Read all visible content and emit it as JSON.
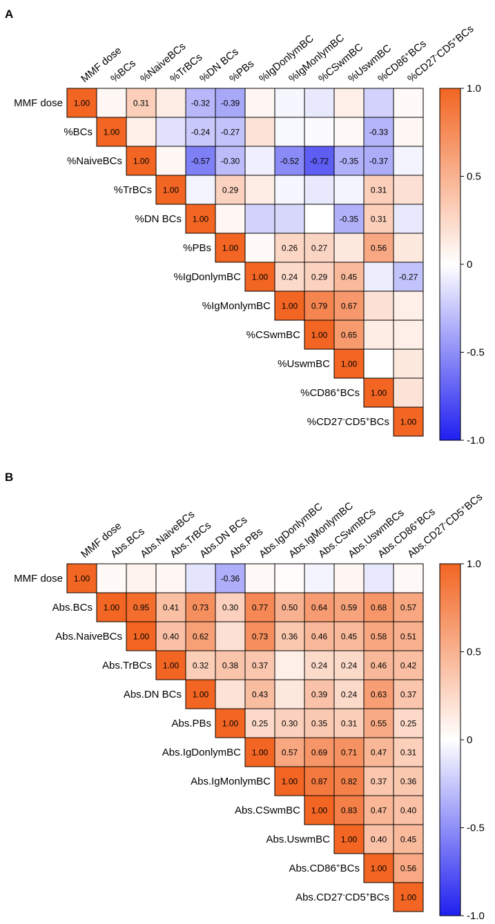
{
  "colors": {
    "positive": "#f26522",
    "zero": "#ffffff",
    "negative": "#1f1ff0",
    "grid": "#000000"
  },
  "chart_data": [
    {
      "type": "heatmap",
      "panel_label": "A",
      "title": "",
      "variables": [
        {
          "text": "MMF dose"
        },
        {
          "text": "%BCs"
        },
        {
          "text": "%NaiveBCs"
        },
        {
          "text": "%TrBCs"
        },
        {
          "text": "%DN BCs"
        },
        {
          "text": "%PBs"
        },
        {
          "text": "%IgDonlymBC"
        },
        {
          "text": "%IgMonlymBC"
        },
        {
          "text": "%CSwmBC"
        },
        {
          "text": "%UswmBC"
        },
        {
          "text": "%CD86",
          "sup": "+",
          "tail": "BCs"
        },
        {
          "text": "%CD27",
          "sup": "-",
          "mid": "CD5",
          "sup2": "+",
          "tail": "BCs"
        }
      ],
      "upper_triangle": [
        [
          1.0,
          0.05,
          0.31,
          0.12,
          -0.32,
          -0.39,
          0.06,
          -0.04,
          -0.1,
          0.1,
          -0.2,
          0.03
        ],
        [
          1.0,
          0.1,
          -0.13,
          -0.24,
          -0.27,
          0.18,
          -0.03,
          -0.02,
          0.04,
          -0.33,
          0.05
        ],
        [
          1.0,
          0.05,
          -0.57,
          -0.3,
          -0.07,
          -0.52,
          -0.72,
          -0.35,
          -0.37,
          -0.05
        ],
        [
          1.0,
          -0.05,
          0.29,
          0.12,
          -0.04,
          -0.1,
          -0.05,
          0.31,
          0.2
        ],
        [
          1.0,
          0.05,
          -0.2,
          -0.18,
          0.0,
          -0.35,
          0.31,
          -0.1
        ],
        [
          1.0,
          0.03,
          0.26,
          0.27,
          0.15,
          0.56,
          0.15
        ],
        [
          1.0,
          0.24,
          0.29,
          0.45,
          -0.08,
          -0.27
        ],
        [
          1.0,
          0.79,
          0.67,
          0.2,
          0.1
        ],
        [
          1.0,
          0.65,
          0.12,
          0.1
        ],
        [
          1.0,
          0.0,
          0.15
        ],
        [
          1.0,
          0.18
        ],
        [
          1.0
        ]
      ],
      "labeled_values": [
        [
          1.0,
          null,
          0.31,
          null,
          -0.32,
          -0.39,
          null,
          null,
          null,
          null,
          null,
          null
        ],
        [
          1.0,
          null,
          null,
          -0.24,
          -0.27,
          null,
          null,
          null,
          null,
          -0.33,
          null
        ],
        [
          1.0,
          null,
          -0.57,
          -0.3,
          null,
          -0.52,
          -0.72,
          -0.35,
          -0.37,
          null
        ],
        [
          1.0,
          null,
          0.29,
          null,
          null,
          null,
          null,
          0.31,
          null
        ],
        [
          1.0,
          null,
          null,
          null,
          null,
          -0.35,
          0.31,
          null
        ],
        [
          1.0,
          null,
          0.26,
          0.27,
          null,
          0.56,
          null
        ],
        [
          1.0,
          0.24,
          0.29,
          0.45,
          null,
          -0.27
        ],
        [
          1.0,
          0.79,
          0.67,
          null,
          null
        ],
        [
          1.0,
          0.65,
          null,
          null
        ],
        [
          1.0,
          null,
          null
        ],
        [
          1.0,
          null
        ],
        [
          1.0
        ]
      ],
      "colorbar": {
        "range": [
          -1.0,
          1.0
        ],
        "ticks": [
          "1.0",
          "0.5",
          "0",
          "-0.5",
          "-1.0"
        ],
        "tick_values": [
          1.0,
          0.5,
          0,
          -0.5,
          -1.0
        ]
      }
    },
    {
      "type": "heatmap",
      "panel_label": "B",
      "title": "",
      "variables": [
        {
          "text": "MMF dose"
        },
        {
          "text": "Abs.BCs"
        },
        {
          "text": "Abs.NaiveBCs"
        },
        {
          "text": "Abs.TrBCs"
        },
        {
          "text": "Abs.DN BCs"
        },
        {
          "text": "Abs.PBs"
        },
        {
          "text": "Abs.IgDonlymBC"
        },
        {
          "text": "Abs.IgMonlymBC"
        },
        {
          "text": "Abs.CSwmBCs"
        },
        {
          "text": "Abs.UswmBCs"
        },
        {
          "text": "Abs.CD86",
          "sup": "+",
          "tail": "BCs"
        },
        {
          "text": "Abs.CD27",
          "sup": "-",
          "mid": "CD5",
          "sup2": "+",
          "tail": "BCs"
        }
      ],
      "row_variables": [
        {
          "text": "MMF dose"
        },
        {
          "text": "Abs.BCs"
        },
        {
          "text": "Abs.NaiveBCs"
        },
        {
          "text": "Abs.TrBCs"
        },
        {
          "text": "Abs.DN BCs"
        },
        {
          "text": "Abs.PBs"
        },
        {
          "text": "Abs.IgDonlymBC"
        },
        {
          "text": "Abs.IgMonlymBC"
        },
        {
          "text": "Abs.CSwmBC"
        },
        {
          "text": "Abs.UswmBC"
        },
        {
          "text": "Abs.CD86",
          "sup": "+",
          "tail": "BCs"
        },
        {
          "text": "Abs.CD27",
          "sup": "-",
          "mid": "CD5",
          "sup2": "+",
          "tail": "BCs"
        }
      ],
      "upper_triangle": [
        [
          1.0,
          0.03,
          0.08,
          0.05,
          -0.12,
          -0.36,
          0.04,
          0.02,
          -0.05,
          0.06,
          -0.1,
          0.04
        ],
        [
          1.0,
          0.95,
          0.41,
          0.73,
          0.3,
          0.77,
          0.5,
          0.64,
          0.59,
          0.68,
          0.57
        ],
        [
          1.0,
          0.4,
          0.62,
          0.2,
          0.73,
          0.36,
          0.46,
          0.45,
          0.58,
          0.51
        ],
        [
          1.0,
          0.32,
          0.38,
          0.37,
          0.1,
          0.24,
          0.24,
          0.46,
          0.42
        ],
        [
          1.0,
          0.18,
          0.43,
          0.15,
          0.39,
          0.24,
          0.63,
          0.37
        ],
        [
          1.0,
          0.25,
          0.3,
          0.35,
          0.31,
          0.55,
          0.25
        ],
        [
          1.0,
          0.57,
          0.69,
          0.71,
          0.47,
          0.31
        ],
        [
          1.0,
          0.87,
          0.82,
          0.37,
          0.36
        ],
        [
          1.0,
          0.83,
          0.47,
          0.4
        ],
        [
          1.0,
          0.4,
          0.45
        ],
        [
          1.0,
          0.56
        ],
        [
          1.0
        ]
      ],
      "labeled_values": [
        [
          1.0,
          null,
          null,
          null,
          null,
          -0.36,
          null,
          null,
          null,
          null,
          null,
          null
        ],
        [
          1.0,
          0.95,
          0.41,
          0.73,
          0.3,
          0.77,
          0.5,
          0.64,
          0.59,
          0.68,
          0.57
        ],
        [
          1.0,
          0.4,
          0.62,
          null,
          0.73,
          0.36,
          0.46,
          0.45,
          0.58,
          0.51
        ],
        [
          1.0,
          0.32,
          0.38,
          0.37,
          null,
          0.24,
          0.24,
          0.46,
          0.42
        ],
        [
          1.0,
          null,
          0.43,
          null,
          0.39,
          0.24,
          0.63,
          0.37
        ],
        [
          1.0,
          0.25,
          0.3,
          0.35,
          0.31,
          0.55,
          0.25
        ],
        [
          1.0,
          0.57,
          0.69,
          0.71,
          0.47,
          0.31
        ],
        [
          1.0,
          0.87,
          0.82,
          0.37,
          0.36
        ],
        [
          1.0,
          0.83,
          0.47,
          0.4
        ],
        [
          1.0,
          0.4,
          0.45
        ],
        [
          1.0,
          0.56
        ],
        [
          1.0
        ]
      ],
      "colorbar": {
        "range": [
          -1.0,
          1.0
        ],
        "ticks": [
          "1.0",
          "0.5",
          "0",
          "-0.5",
          "-1.0"
        ],
        "tick_values": [
          1.0,
          0.5,
          0,
          -0.5,
          -1.0
        ]
      }
    }
  ]
}
